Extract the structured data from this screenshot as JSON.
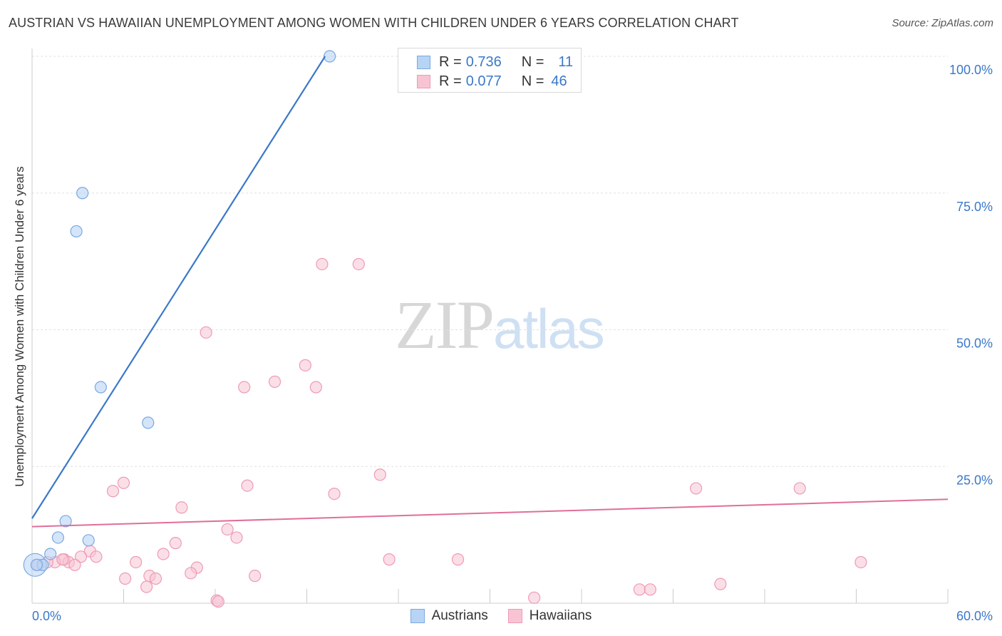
{
  "header": {
    "title": "AUSTRIAN VS HAWAIIAN UNEMPLOYMENT AMONG WOMEN WITH CHILDREN UNDER 6 YEARS CORRELATION CHART",
    "source": "Source: ZipAtlas.com"
  },
  "watermark": {
    "zip": "ZIP",
    "atlas": "atlas"
  },
  "legend": {
    "r_label": "R =",
    "n_label": "N =",
    "austrians": {
      "r": "0.736",
      "n": "11"
    },
    "hawaiians": {
      "r": "0.077",
      "n": "46"
    }
  },
  "colors": {
    "austrians_fill": "#b8d4f5",
    "austrians_stroke": "#7aa8e0",
    "austrians_line": "#3a78c9",
    "hawaiians_fill": "#f8c4d4",
    "hawaiians_stroke": "#ee9ab5",
    "hawaiians_line": "#e06e99",
    "axis_label": "#3a78c9",
    "grid": "#e0e0e0"
  },
  "chart_data": {
    "type": "scatter",
    "title": "AUSTRIAN VS HAWAIIAN UNEMPLOYMENT AMONG WOMEN WITH CHILDREN UNDER 6 YEARS CORRELATION CHART",
    "xlabel": "",
    "ylabel": "Unemployment Among Women with Children Under 6 years",
    "xlim": [
      0,
      60
    ],
    "ylim": [
      0,
      100
    ],
    "x_tick_labels": [
      "0.0%",
      "60.0%"
    ],
    "x_tick_values": [
      0,
      60
    ],
    "x_minor_ticks": [
      6,
      12,
      18,
      24,
      30,
      36,
      42,
      48,
      54,
      60
    ],
    "y_tick_labels": [
      "25.0%",
      "50.0%",
      "75.0%",
      "100.0%"
    ],
    "y_tick_values": [
      25,
      50,
      75,
      100
    ],
    "grid": true,
    "legend_position": "top-center",
    "series": [
      {
        "name": "Austrians",
        "points": [
          [
            19.5,
            100.0
          ],
          [
            3.3,
            75.0
          ],
          [
            2.9,
            68.0
          ],
          [
            4.5,
            39.5
          ],
          [
            7.6,
            33.0
          ],
          [
            2.2,
            15.0
          ],
          [
            3.7,
            11.5
          ],
          [
            1.7,
            12.0
          ],
          [
            1.2,
            9.0
          ],
          [
            0.7,
            7.0
          ],
          [
            0.3,
            7.0
          ]
        ],
        "large_point": [
          0.2,
          7.0
        ],
        "trend": {
          "x": [
            0,
            19.2
          ],
          "y": [
            15.5,
            100.0
          ]
        }
      },
      {
        "name": "Hawaiians",
        "points": [
          [
            19.0,
            62.0
          ],
          [
            21.4,
            62.0
          ],
          [
            11.4,
            49.5
          ],
          [
            17.9,
            43.5
          ],
          [
            15.9,
            40.5
          ],
          [
            13.9,
            39.5
          ],
          [
            18.6,
            39.5
          ],
          [
            22.8,
            23.5
          ],
          [
            6.0,
            22.0
          ],
          [
            5.3,
            20.5
          ],
          [
            14.1,
            21.5
          ],
          [
            19.8,
            20.0
          ],
          [
            43.5,
            21.0
          ],
          [
            50.3,
            21.0
          ],
          [
            9.8,
            17.5
          ],
          [
            12.8,
            13.5
          ],
          [
            13.4,
            12.0
          ],
          [
            9.4,
            11.0
          ],
          [
            3.8,
            9.5
          ],
          [
            8.6,
            9.0
          ],
          [
            3.2,
            8.5
          ],
          [
            4.2,
            8.5
          ],
          [
            2.1,
            8.0
          ],
          [
            1.5,
            7.5
          ],
          [
            2.4,
            7.5
          ],
          [
            2.8,
            7.0
          ],
          [
            6.8,
            7.5
          ],
          [
            10.8,
            6.5
          ],
          [
            23.4,
            8.0
          ],
          [
            27.9,
            8.0
          ],
          [
            54.3,
            7.5
          ],
          [
            10.4,
            5.5
          ],
          [
            7.7,
            5.0
          ],
          [
            8.1,
            4.5
          ],
          [
            6.1,
            4.5
          ],
          [
            14.6,
            5.0
          ],
          [
            7.5,
            3.0
          ],
          [
            39.8,
            2.5
          ],
          [
            40.5,
            2.5
          ],
          [
            45.1,
            3.5
          ],
          [
            32.9,
            1.0
          ],
          [
            12.1,
            0.5
          ],
          [
            12.2,
            0.3
          ],
          [
            2.0,
            8.0
          ],
          [
            1.0,
            7.5
          ],
          [
            0.4,
            7.0
          ]
        ],
        "trend": {
          "x": [
            0,
            60
          ],
          "y": [
            14.0,
            19.0
          ]
        }
      }
    ]
  }
}
